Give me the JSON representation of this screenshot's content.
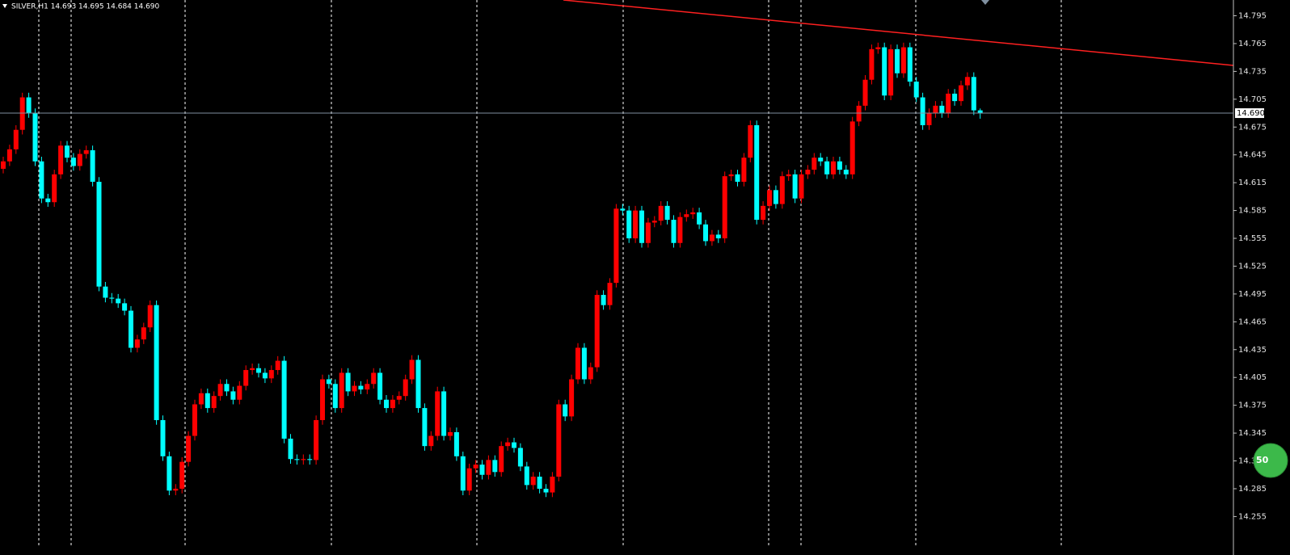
{
  "chart_data": {
    "type": "candlestick",
    "title": "SILVER,H1  14.693 14.695 14.684 14.690",
    "up_color": "#ff0000",
    "down_color": "#00ffff",
    "ylim": [
      14.224,
      14.812
    ],
    "yticks": [
      14.795,
      14.765,
      14.735,
      14.705,
      14.675,
      14.645,
      14.615,
      14.585,
      14.555,
      14.525,
      14.495,
      14.465,
      14.435,
      14.405,
      14.375,
      14.345,
      14.315,
      14.285,
      14.255
    ],
    "current_price": {
      "value": 14.69,
      "label": "14.690"
    },
    "badge": 50,
    "open": [
      14.63,
      14.638,
      14.651,
      14.672,
      14.707,
      14.69,
      14.638,
      14.598,
      14.594,
      14.624,
      14.655,
      14.642,
      14.633,
      14.646,
      14.65,
      14.616,
      14.503,
      14.491,
      14.49,
      14.485,
      14.477,
      14.437,
      14.446,
      14.459,
      14.483,
      14.359,
      14.32,
      14.283,
      14.285,
      14.314,
      14.342,
      14.376,
      14.388,
      14.372,
      14.385,
      14.398,
      14.39,
      14.381,
      14.396,
      14.413,
      14.415,
      14.41,
      14.404,
      14.413,
      14.423,
      14.339,
      14.317,
      14.316,
      14.317,
      14.316,
      14.359,
      14.403,
      14.398,
      14.372,
      14.41,
      14.39,
      14.396,
      14.392,
      14.398,
      14.41,
      14.381,
      14.372,
      14.381,
      14.385,
      14.403,
      14.424,
      14.372,
      14.331,
      14.342,
      14.39,
      14.342,
      14.346,
      14.32,
      14.283,
      14.307,
      14.311,
      14.3,
      14.316,
      14.303,
      14.331,
      14.335,
      14.329,
      14.309,
      14.289,
      14.298,
      14.285,
      14.281,
      14.298,
      14.376,
      14.363,
      14.403,
      14.437,
      14.403,
      14.416,
      14.494,
      14.483,
      14.507,
      14.587,
      14.585,
      14.555,
      14.585,
      14.55,
      14.572,
      14.574,
      14.59,
      14.575,
      14.55,
      14.578,
      14.581,
      14.583,
      14.57,
      14.552,
      14.559,
      14.555,
      14.622,
      14.624,
      14.616,
      14.642,
      14.677,
      14.575,
      14.59,
      14.607,
      14.592,
      14.622,
      14.624,
      14.598,
      14.624,
      14.629,
      14.642,
      14.638,
      14.624,
      14.638,
      14.629,
      14.624,
      14.681,
      14.698,
      14.726,
      14.759,
      14.761,
      14.709,
      14.759,
      14.733,
      14.761,
      14.724,
      14.707,
      14.677,
      14.69,
      14.698,
      14.69,
      14.711,
      14.703,
      14.72,
      14.729,
      14.693
    ],
    "high": [
      14.643,
      14.656,
      14.677,
      14.712,
      14.712,
      14.695,
      14.643,
      14.603,
      14.629,
      14.66,
      14.66,
      14.647,
      14.651,
      14.655,
      14.655,
      14.621,
      14.508,
      14.496,
      14.495,
      14.49,
      14.482,
      14.451,
      14.464,
      14.488,
      14.488,
      14.364,
      14.325,
      14.29,
      14.319,
      14.347,
      14.381,
      14.393,
      14.393,
      14.39,
      14.403,
      14.403,
      14.395,
      14.401,
      14.418,
      14.42,
      14.42,
      14.415,
      14.418,
      14.428,
      14.428,
      14.344,
      14.322,
      14.322,
      14.322,
      14.364,
      14.408,
      14.408,
      14.403,
      14.415,
      14.415,
      14.401,
      14.401,
      14.403,
      14.415,
      14.415,
      14.386,
      14.386,
      14.39,
      14.408,
      14.429,
      14.429,
      14.377,
      14.347,
      14.395,
      14.395,
      14.351,
      14.351,
      14.325,
      14.312,
      14.316,
      14.316,
      14.321,
      14.321,
      14.336,
      14.34,
      14.34,
      14.334,
      14.314,
      14.303,
      14.303,
      14.29,
      14.303,
      14.381,
      14.381,
      14.408,
      14.442,
      14.442,
      14.421,
      14.499,
      14.499,
      14.512,
      14.592,
      14.592,
      14.59,
      14.59,
      14.59,
      14.577,
      14.579,
      14.595,
      14.595,
      14.58,
      14.583,
      14.586,
      14.588,
      14.588,
      14.575,
      14.564,
      14.564,
      14.627,
      14.629,
      14.629,
      14.647,
      14.682,
      14.682,
      14.595,
      14.612,
      14.612,
      14.627,
      14.629,
      14.629,
      14.629,
      14.634,
      14.647,
      14.647,
      14.643,
      14.643,
      14.643,
      14.634,
      14.686,
      14.703,
      14.731,
      14.764,
      14.766,
      14.766,
      14.764,
      14.764,
      14.766,
      14.766,
      14.729,
      14.712,
      14.695,
      14.703,
      14.703,
      14.716,
      14.716,
      14.725,
      14.734,
      14.734,
      14.695
    ],
    "low": [
      14.625,
      14.633,
      14.646,
      14.667,
      14.685,
      14.633,
      14.593,
      14.589,
      14.589,
      14.619,
      14.637,
      14.628,
      14.628,
      14.641,
      14.611,
      14.498,
      14.486,
      14.485,
      14.48,
      14.472,
      14.432,
      14.432,
      14.441,
      14.454,
      14.354,
      14.315,
      14.278,
      14.278,
      14.28,
      14.309,
      14.337,
      14.371,
      14.367,
      14.367,
      14.38,
      14.385,
      14.376,
      14.376,
      14.391,
      14.408,
      14.405,
      14.399,
      14.399,
      14.408,
      14.334,
      14.312,
      14.311,
      14.311,
      14.311,
      14.311,
      14.354,
      14.393,
      14.367,
      14.367,
      14.385,
      14.385,
      14.387,
      14.387,
      14.393,
      14.376,
      14.367,
      14.367,
      14.376,
      14.38,
      14.398,
      14.367,
      14.326,
      14.326,
      14.337,
      14.337,
      14.337,
      14.315,
      14.278,
      14.278,
      14.302,
      14.295,
      14.295,
      14.298,
      14.298,
      14.326,
      14.324,
      14.304,
      14.284,
      14.284,
      14.28,
      14.276,
      14.276,
      14.293,
      14.358,
      14.358,
      14.398,
      14.398,
      14.398,
      14.411,
      14.478,
      14.478,
      14.502,
      14.58,
      14.55,
      14.55,
      14.545,
      14.545,
      14.567,
      14.569,
      14.57,
      14.545,
      14.545,
      14.573,
      14.576,
      14.565,
      14.547,
      14.547,
      14.55,
      14.55,
      14.617,
      14.611,
      14.611,
      14.637,
      14.57,
      14.57,
      14.585,
      14.587,
      14.587,
      14.617,
      14.593,
      14.593,
      14.619,
      14.624,
      14.633,
      14.619,
      14.619,
      14.624,
      14.619,
      14.619,
      14.676,
      14.693,
      14.721,
      14.754,
      14.704,
      14.704,
      14.728,
      14.728,
      14.719,
      14.702,
      14.672,
      14.672,
      14.685,
      14.685,
      14.685,
      14.698,
      14.698,
      14.715,
      14.688,
      14.684
    ],
    "close": [
      14.638,
      14.651,
      14.672,
      14.707,
      14.69,
      14.638,
      14.598,
      14.594,
      14.624,
      14.655,
      14.642,
      14.633,
      14.646,
      14.65,
      14.616,
      14.503,
      14.491,
      14.49,
      14.485,
      14.477,
      14.437,
      14.446,
      14.459,
      14.483,
      14.359,
      14.32,
      14.283,
      14.285,
      14.314,
      14.342,
      14.376,
      14.388,
      14.372,
      14.385,
      14.398,
      14.39,
      14.381,
      14.396,
      14.413,
      14.415,
      14.41,
      14.404,
      14.413,
      14.423,
      14.339,
      14.317,
      14.316,
      14.317,
      14.316,
      14.359,
      14.403,
      14.398,
      14.372,
      14.41,
      14.39,
      14.396,
      14.392,
      14.398,
      14.41,
      14.381,
      14.372,
      14.381,
      14.385,
      14.403,
      14.424,
      14.372,
      14.331,
      14.342,
      14.39,
      14.342,
      14.346,
      14.32,
      14.283,
      14.307,
      14.311,
      14.3,
      14.316,
      14.303,
      14.331,
      14.335,
      14.329,
      14.309,
      14.289,
      14.298,
      14.285,
      14.281,
      14.298,
      14.376,
      14.363,
      14.403,
      14.437,
      14.403,
      14.416,
      14.494,
      14.483,
      14.507,
      14.587,
      14.585,
      14.555,
      14.585,
      14.55,
      14.572,
      14.574,
      14.59,
      14.575,
      14.55,
      14.578,
      14.581,
      14.583,
      14.57,
      14.552,
      14.559,
      14.555,
      14.622,
      14.624,
      14.616,
      14.642,
      14.677,
      14.575,
      14.59,
      14.607,
      14.592,
      14.622,
      14.624,
      14.598,
      14.624,
      14.629,
      14.642,
      14.638,
      14.624,
      14.638,
      14.629,
      14.624,
      14.681,
      14.698,
      14.726,
      14.759,
      14.761,
      14.709,
      14.759,
      14.733,
      14.761,
      14.724,
      14.707,
      14.677,
      14.69,
      14.698,
      14.69,
      14.711,
      14.703,
      14.72,
      14.729,
      14.693,
      14.69
    ]
  }
}
